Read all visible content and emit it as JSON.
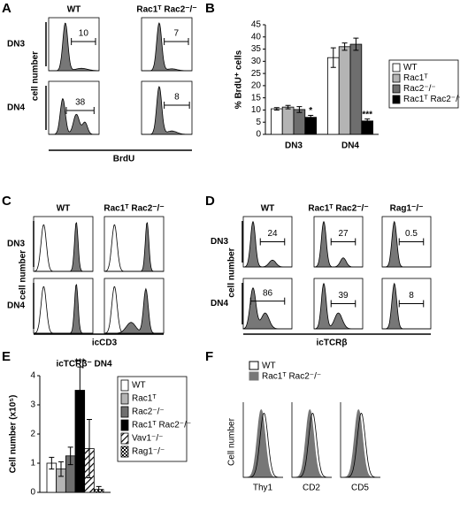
{
  "panels": {
    "A": {
      "label": "A",
      "columns": [
        "WT",
        "Rac1ᵀ Rac2⁻/⁻"
      ],
      "rows": [
        "DN3",
        "DN4"
      ],
      "y_label": "cell number",
      "x_label": "BrdU",
      "gates": [
        [
          10,
          7
        ],
        [
          38,
          8
        ]
      ]
    },
    "C": {
      "label": "C",
      "columns": [
        "WT",
        "Rac1ᵀ Rac2⁻/⁻"
      ],
      "rows": [
        "DN3",
        "DN4"
      ],
      "y_label": "cell number",
      "x_label": "icCD3"
    },
    "D": {
      "label": "D",
      "columns": [
        "WT",
        "Rac1ᵀ Rac2⁻/⁻",
        "Rag1⁻/⁻"
      ],
      "rows": [
        "DN3",
        "DN4"
      ],
      "y_label": "cell number",
      "x_label": "icTCRβ",
      "gates": [
        [
          24,
          27,
          0.5
        ],
        [
          86,
          39,
          8
        ]
      ]
    },
    "F": {
      "label": "F",
      "legend": [
        "WT",
        "Rac1ᵀ Rac2⁻/⁻"
      ],
      "y_label": "Cell number",
      "markers": [
        "Thy1",
        "CD2",
        "CD5"
      ]
    }
  },
  "chart_data": [
    {
      "type": "bar",
      "label": "B",
      "ylabel": "% BrdU⁺ cells",
      "categories": [
        "DN3",
        "DN4"
      ],
      "series": [
        {
          "name": "WT",
          "color": "#ffffff",
          "values": [
            10.5,
            31.5
          ],
          "errors": [
            0.5,
            4
          ]
        },
        {
          "name": "Rac1ᵀ",
          "color": "#b4b4b4",
          "values": [
            11.2,
            36
          ],
          "errors": [
            0.7,
            1.5
          ]
        },
        {
          "name": "Rac2⁻/⁻",
          "color": "#6e6e6e",
          "values": [
            10.2,
            37
          ],
          "errors": [
            1.2,
            2.5
          ]
        },
        {
          "name": "Rac1ᵀ Rac2⁻/⁻",
          "color": "#000000",
          "values": [
            7,
            5.5
          ],
          "errors": [
            0.8,
            0.8
          ]
        }
      ],
      "ylim": [
        0,
        45
      ],
      "yticks": [
        0,
        5,
        10,
        15,
        20,
        25,
        30,
        35,
        40,
        45
      ],
      "annotations": [
        {
          "text": "*",
          "category": "DN3",
          "series": "Rac1ᵀ Rac2⁻/⁻"
        },
        {
          "text": "***",
          "category": "DN4",
          "series": "Rac1ᵀ Rac2⁻/⁻"
        }
      ],
      "legend": "right"
    },
    {
      "type": "bar",
      "label": "E",
      "title": "icTCRβ⁻ DN4",
      "ylabel": "Cell number (x10⁵)",
      "categories": [
        null
      ],
      "series": [
        {
          "name": "WT",
          "color": "#ffffff",
          "values": [
            1.0
          ],
          "errors": [
            0.2
          ]
        },
        {
          "name": "Rac1ᵀ",
          "color": "#b4b4b4",
          "values": [
            0.8
          ],
          "errors": [
            0.25
          ]
        },
        {
          "name": "Rac2⁻/⁻",
          "color": "#6e6e6e",
          "values": [
            1.25
          ],
          "errors": [
            0.3
          ]
        },
        {
          "name": "Rac1ᵀ Rac2⁻/⁻",
          "color": "#000000",
          "values": [
            3.5
          ],
          "errors": [
            0.8
          ]
        },
        {
          "name": "Vav1⁻/⁻",
          "color": "#ffffff",
          "pattern": "hatch",
          "values": [
            1.5
          ],
          "errors": [
            1.0
          ]
        },
        {
          "name": "Rag1⁻/⁻",
          "color": "#ffffff",
          "pattern": "check",
          "values": [
            0.1
          ],
          "errors": [
            0.1
          ]
        }
      ],
      "ylim": [
        0,
        4
      ],
      "yticks": [
        0,
        1,
        2,
        3,
        4
      ],
      "annotations": [
        {
          "text": "***",
          "series": "Rac1ᵀ Rac2⁻/⁻"
        }
      ],
      "legend": "right"
    }
  ]
}
